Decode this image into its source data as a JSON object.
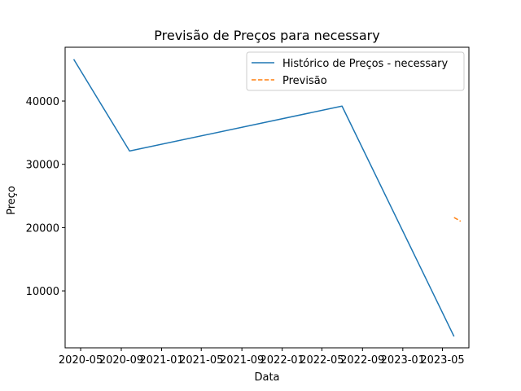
{
  "chart_data": {
    "type": "line",
    "title": "Previsão de Preços para necessary",
    "xlabel": "Data",
    "ylabel": "Preço",
    "x_ticks": [
      "2020-05",
      "2020-09",
      "2021-01",
      "2021-05",
      "2021-09",
      "2022-01",
      "2022-05",
      "2022-09",
      "2023-01",
      "2023-05"
    ],
    "y_ticks": [
      "10000",
      "20000",
      "30000",
      "40000"
    ],
    "ylim": [
      1000,
      48500
    ],
    "xlim": [
      "2020-03-15",
      "2023-07-20"
    ],
    "grid": false,
    "legend_position": "top-right",
    "series": [
      {
        "name": "Histórico de Preços - necessary",
        "color": "#1f77b4",
        "style": "solid",
        "points": [
          {
            "x": "2020-04-10",
            "y": 46600
          },
          {
            "x": "2020-09-26",
            "y": 32100
          },
          {
            "x": "2022-07-01",
            "y": 39200
          },
          {
            "x": "2023-06-05",
            "y": 2800
          }
        ]
      },
      {
        "name": "Previsão",
        "color": "#ff7f0e",
        "style": "dashed",
        "points": [
          {
            "x": "2023-06-05",
            "y": 21600
          },
          {
            "x": "2023-06-25",
            "y": 21000
          }
        ]
      }
    ]
  }
}
